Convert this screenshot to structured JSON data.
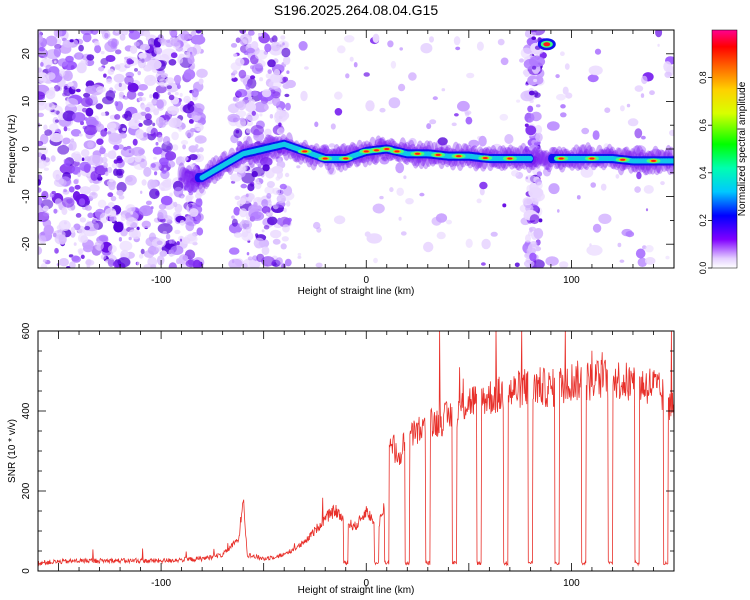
{
  "figure": {
    "title": "S196.2025.264.08.04.G15"
  },
  "chart_data": [
    {
      "type": "heatmap",
      "title": "S196.2025.264.08.04.G15",
      "xlabel": "Height of straight line (km)",
      "ylabel": "Frequency (Hz)",
      "xlim": [
        -160,
        150
      ],
      "ylim": [
        -25,
        25
      ],
      "xticks": [
        -100,
        0,
        100
      ],
      "yticks": [
        -20,
        -10,
        0,
        10,
        20
      ],
      "colorbar": {
        "label": "Normalized spectral amplitude",
        "range": [
          0,
          1
        ],
        "ticks": [
          0.0,
          0.2,
          0.4,
          0.6,
          0.8
        ],
        "tick_labels": [
          "0.0",
          "0.2",
          "0.4",
          "0.6",
          "0.8"
        ]
      },
      "ridge": {
        "description": "dominant frequency trace",
        "x": [
          -80,
          -72,
          -60,
          -50,
          -40,
          -30,
          -20,
          -10,
          0,
          10,
          20,
          30,
          40,
          50,
          60,
          70,
          80,
          100,
          110,
          120,
          130,
          145
        ],
        "y": [
          -6,
          -4,
          -1,
          0,
          1,
          -0.5,
          -2,
          -2,
          -0.5,
          0,
          -1,
          -1,
          -1.5,
          -1.5,
          -2,
          -2,
          -2,
          -2,
          -2,
          -2,
          -2.5,
          -2.5
        ]
      },
      "noise_regions_x": [
        [
          -160,
          -80
        ],
        [
          -65,
          -38
        ],
        [
          78,
          85
        ]
      ],
      "hot_spot": {
        "x": 88,
        "y": 22
      }
    },
    {
      "type": "line",
      "xlabel": "Height of straight line (km)",
      "ylabel": "SNR (10 * v/v)",
      "xlim": [
        -160,
        150
      ],
      "ylim": [
        0,
        600
      ],
      "xticks": [
        -100,
        0,
        100
      ],
      "yticks": [
        0,
        200,
        400,
        600
      ],
      "series": [
        {
          "name": "SNR",
          "color": "#e8302a",
          "x": [
            -160,
            -140,
            -120,
            -100,
            -80,
            -70,
            -62,
            -60,
            -58,
            -50,
            -40,
            -30,
            -20,
            -15,
            -10,
            -5,
            0,
            5,
            8,
            10,
            12,
            15,
            20,
            30,
            40,
            50,
            60,
            70,
            80,
            90,
            100,
            110,
            120,
            130,
            140,
            150
          ],
          "y": [
            20,
            25,
            25,
            25,
            30,
            40,
            80,
            190,
            40,
            30,
            40,
            70,
            130,
            150,
            120,
            110,
            150,
            110,
            140,
            200,
            330,
            280,
            330,
            360,
            380,
            420,
            430,
            440,
            460,
            450,
            470,
            470,
            480,
            460,
            460,
            400
          ],
          "dropouts_x": [
            -10,
            5,
            10,
            20,
            30,
            43,
            55,
            68,
            80,
            93,
            106,
            119,
            132,
            146
          ],
          "dropout_floor": 15
        }
      ]
    }
  ]
}
